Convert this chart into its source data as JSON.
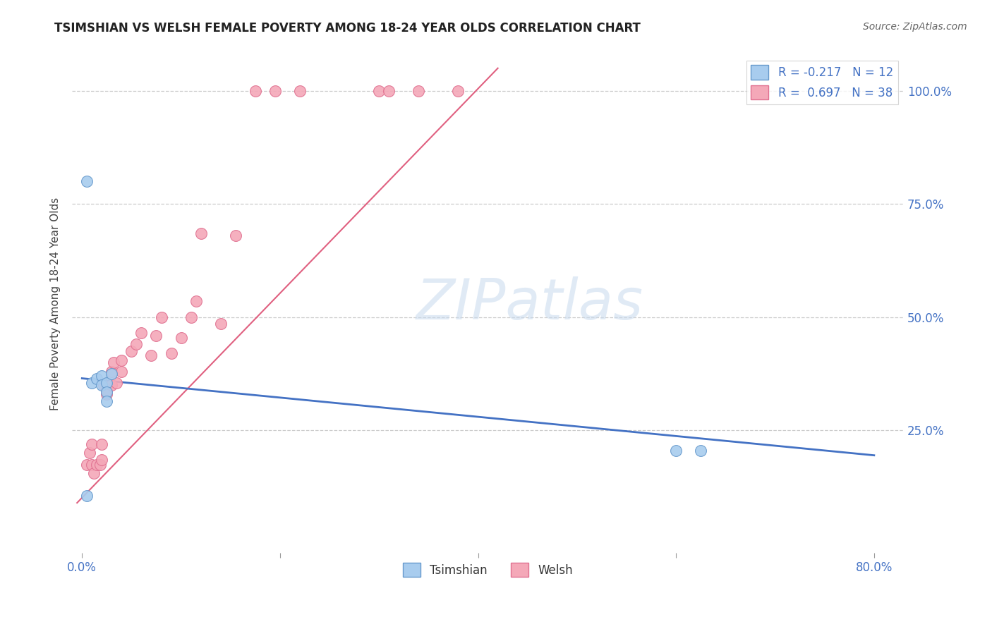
{
  "title": "TSIMSHIAN VS WELSH FEMALE POVERTY AMONG 18-24 YEAR OLDS CORRELATION CHART",
  "source_text": "Source: ZipAtlas.com",
  "ylabel": "Female Poverty Among 18-24 Year Olds",
  "xlim_data": [
    0.0,
    0.8
  ],
  "ylim_data": [
    -0.02,
    1.08
  ],
  "xtick_vals": [
    0.0,
    0.2,
    0.4,
    0.6,
    0.8
  ],
  "xtick_labels": [
    "0.0%",
    "",
    "",
    "",
    "80.0%"
  ],
  "ytick_vals": [
    0.25,
    0.5,
    0.75,
    1.0
  ],
  "ytick_labels": [
    "25.0%",
    "50.0%",
    "75.0%",
    "100.0%"
  ],
  "tsimshian_color": "#A8CCEE",
  "welsh_color": "#F4A8B8",
  "tsimshian_edge_color": "#6699CC",
  "welsh_edge_color": "#E07090",
  "tsimshian_line_color": "#4472C4",
  "welsh_line_color": "#E06080",
  "R_tsimshian": -0.217,
  "N_tsimshian": 12,
  "R_welsh": 0.697,
  "N_welsh": 38,
  "watermark_text": "ZIPatlas",
  "background_color": "#FFFFFF",
  "grid_color": "#CCCCCC",
  "title_color": "#222222",
  "source_color": "#666666",
  "tick_color": "#4472C4",
  "tsimshian_x": [
    0.005,
    0.01,
    0.015,
    0.02,
    0.02,
    0.025,
    0.025,
    0.025,
    0.03,
    0.005,
    0.6,
    0.625
  ],
  "tsimshian_y": [
    0.8,
    0.355,
    0.365,
    0.37,
    0.35,
    0.355,
    0.335,
    0.315,
    0.375,
    0.105,
    0.205,
    0.205
  ],
  "welsh_x": [
    0.005,
    0.008,
    0.01,
    0.01,
    0.012,
    0.015,
    0.018,
    0.02,
    0.02,
    0.022,
    0.025,
    0.025,
    0.03,
    0.03,
    0.032,
    0.035,
    0.04,
    0.04,
    0.05,
    0.055,
    0.06,
    0.07,
    0.075,
    0.08,
    0.09,
    0.1,
    0.11,
    0.115,
    0.12,
    0.14,
    0.155,
    0.175,
    0.195,
    0.22,
    0.3,
    0.31,
    0.34,
    0.38
  ],
  "welsh_y": [
    0.175,
    0.2,
    0.22,
    0.175,
    0.155,
    0.175,
    0.175,
    0.185,
    0.22,
    0.35,
    0.34,
    0.33,
    0.35,
    0.38,
    0.4,
    0.355,
    0.38,
    0.405,
    0.425,
    0.44,
    0.465,
    0.415,
    0.46,
    0.5,
    0.42,
    0.455,
    0.5,
    0.535,
    0.685,
    0.485,
    0.68,
    1.0,
    1.0,
    1.0,
    1.0,
    1.0,
    1.0,
    1.0
  ],
  "tsim_line_x0": 0.0,
  "tsim_line_x1": 0.8,
  "tsim_line_y0": 0.365,
  "tsim_line_y1": 0.195,
  "welsh_line_x0": -0.005,
  "welsh_line_x1": 0.42,
  "welsh_line_y0": 0.09,
  "welsh_line_y1": 1.05
}
